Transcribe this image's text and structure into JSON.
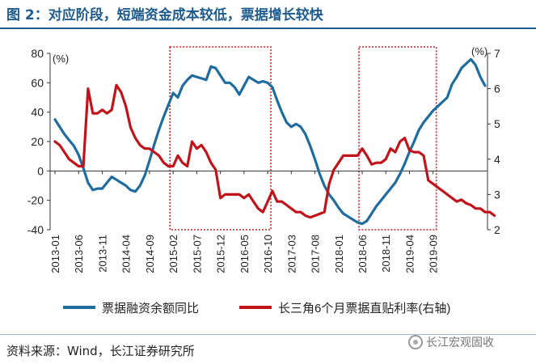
{
  "figure": {
    "title": "图 2：对应阶段，短端资金成本较低，票据增长较快",
    "source": "资料来源：Wind，长江证券研究所",
    "watermark": "长江宏观固收"
  },
  "colors": {
    "series1": "#1f6c9e",
    "series2": "#c0141a",
    "highlight": "#cc2222"
  },
  "chart_data": {
    "type": "line",
    "left_unit": "(%)",
    "right_unit": "(%)",
    "left_ylim": [
      -40,
      80
    ],
    "right_ylim": [
      2,
      7
    ],
    "left_ticks": [
      -40,
      -20,
      0,
      20,
      40,
      60,
      80
    ],
    "right_ticks": [
      2,
      3,
      4,
      5,
      6,
      7
    ],
    "x_ticks": [
      "2013-01",
      "2013-06",
      "2013-11",
      "2014-04",
      "2014-09",
      "2015-02",
      "2015-07",
      "2015-12",
      "2016-05",
      "2016-10",
      "2017-03",
      "2017-08",
      "2018-01",
      "2018-06",
      "2018-11",
      "2019-04",
      "2019-09"
    ],
    "highlight_ranges": [
      [
        "2015-02",
        "2016-10"
      ],
      [
        "2018-06",
        "2019-09"
      ]
    ],
    "series": [
      {
        "name": "票据融资余额同比",
        "axis": "left",
        "values": [
          35,
          30,
          25,
          21,
          17,
          11,
          2,
          -8,
          -13,
          -12,
          -12,
          -8,
          -4,
          -6,
          -8,
          -10,
          -13,
          -14,
          -10,
          -3,
          7,
          18,
          28,
          37,
          45,
          53,
          50,
          58,
          62,
          65,
          64,
          63,
          62,
          71,
          70,
          65,
          60,
          60,
          57,
          52,
          58,
          64,
          62,
          60,
          61,
          60,
          57,
          48,
          40,
          33,
          30,
          32,
          30,
          25,
          17,
          8,
          -2,
          -10,
          -16,
          -20,
          -25,
          -29,
          -31,
          -33,
          -35,
          -36,
          -34,
          -29,
          -24,
          -20,
          -16,
          -12,
          -8,
          -2,
          5,
          13,
          20,
          28,
          33,
          37,
          41,
          44,
          47,
          50,
          59,
          64,
          70,
          73,
          76,
          72,
          64,
          58
        ]
      },
      {
        "name": "长三角6个月票据直贴利率(右轴)",
        "axis": "right",
        "values": [
          4.5,
          4.4,
          4.2,
          4.0,
          3.9,
          3.8,
          3.8,
          6.0,
          5.3,
          5.3,
          5.4,
          5.3,
          5.4,
          6.1,
          5.9,
          5.5,
          4.9,
          4.6,
          4.4,
          4.3,
          4.3,
          4.2,
          4.1,
          3.9,
          3.8,
          3.8,
          4.1,
          3.9,
          3.8,
          4.5,
          4.3,
          4.4,
          4.2,
          3.9,
          3.7,
          2.9,
          3.0,
          3.0,
          3.0,
          3.0,
          2.9,
          3.0,
          2.8,
          2.6,
          2.5,
          2.8,
          3.1,
          2.8,
          2.8,
          2.7,
          2.6,
          2.5,
          2.5,
          2.4,
          2.35,
          2.4,
          2.45,
          2.5,
          3.3,
          3.7,
          3.9,
          4.1,
          4.1,
          4.1,
          4.1,
          4.3,
          4.1,
          3.85,
          3.9,
          3.9,
          4.0,
          4.3,
          4.2,
          4.5,
          4.6,
          4.25,
          4.2,
          4.2,
          4.1,
          3.4,
          3.3,
          3.2,
          3.1,
          3.0,
          2.9,
          2.8,
          2.85,
          2.75,
          2.7,
          2.6,
          2.6,
          2.5,
          2.5,
          2.4
        ]
      }
    ]
  }
}
